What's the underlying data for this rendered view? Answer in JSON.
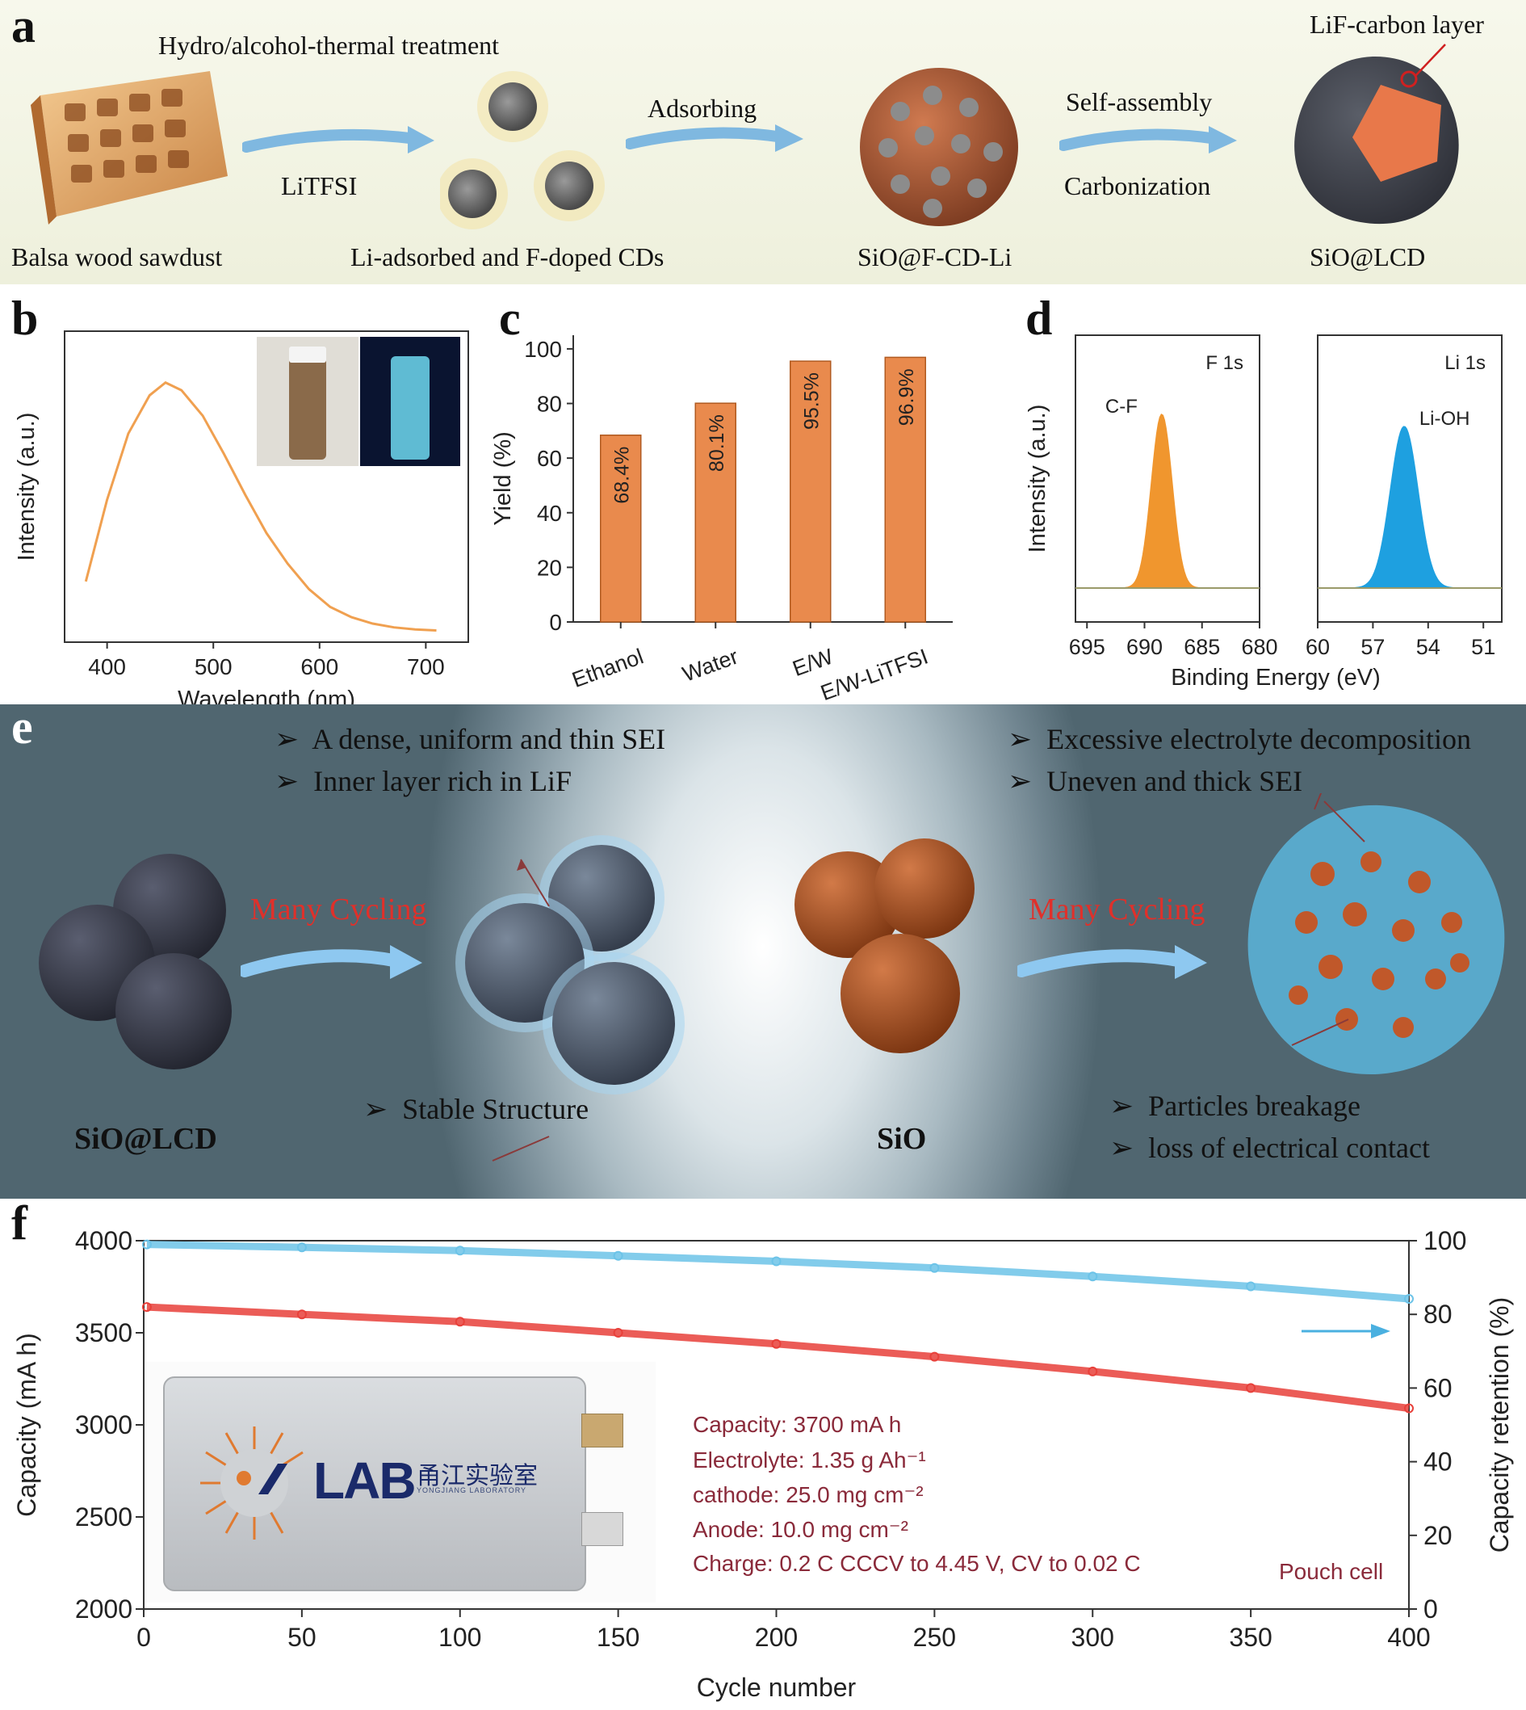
{
  "panels": {
    "a": {
      "letter": "a",
      "labels": {
        "treatment": "Hydro/alcohol-thermal  treatment",
        "litfsi": "LiTFSI",
        "adsorbing": "Adsorbing",
        "self_assembly": "Self-assembly",
        "carbonization": "Carbonization",
        "lif_layer": "LiF-carbon  layer",
        "balsa": "Balsa wood sawdust",
        "cds": "Li-adsorbed  and  F-doped CDs",
        "sio_fcd": "SiO@F-CD-Li",
        "sio_lcd": "SiO@LCD"
      }
    },
    "b": {
      "letter": "b"
    },
    "c": {
      "letter": "c"
    },
    "d": {
      "letter": "d"
    },
    "e": {
      "letter": "e",
      "left_bullets": [
        "A dense,  uniform and thin SEI",
        "Inner layer rich  in LiF"
      ],
      "right_bullets": [
        "Excessive  electrolyte  decomposition",
        "Uneven  and thick SEI"
      ],
      "cycling_left": "Many Cycling",
      "cycling_right": "Many Cycling",
      "stable": "Stable Structure",
      "breakage": "Particles  breakage",
      "contact": "loss  of electrical  contact",
      "label_left": "SiO@LCD",
      "label_right": "SiO",
      "bullet_mark": "➢"
    },
    "f": {
      "letter": "f",
      "info": [
        "Capacity: 3700 mA h",
        "Electrolyte: 1.35 g Ah⁻¹",
        "cathode: 25.0 mg cm⁻²",
        "Anode: 10.0 mg cm⁻²",
        "Charge: 0.2 C CCCV to 4.45 V, CV to 0.02 C"
      ],
      "pouch": "Pouch cell",
      "logo_text": "LAB",
      "logo_cn": "甬江实验室",
      "logo_sub": "YONGJIANG LABORATORY"
    }
  },
  "chart_data": [
    {
      "id": "b",
      "type": "line",
      "xlabel": "Wavelength (nm)",
      "ylabel": "Intensity (a.u.)",
      "xlim": [
        360,
        740
      ],
      "xticks": [
        "400",
        "500",
        "600",
        "700"
      ],
      "x": [
        380,
        400,
        420,
        440,
        455,
        470,
        490,
        510,
        530,
        550,
        570,
        590,
        610,
        630,
        650,
        670,
        690,
        710
      ],
      "y": [
        0.2,
        0.52,
        0.78,
        0.93,
        0.98,
        0.95,
        0.85,
        0.7,
        0.54,
        0.39,
        0.27,
        0.17,
        0.1,
        0.06,
        0.035,
        0.02,
        0.012,
        0.008
      ],
      "color": "#f0a050"
    },
    {
      "id": "c",
      "type": "bar",
      "ylabel": "Yield (%)",
      "categories": [
        "Ethanol",
        "Water",
        "E/W",
        "E/W-LiTFSI"
      ],
      "values": [
        68.4,
        80.1,
        95.5,
        96.9
      ],
      "value_labels": [
        "68.4%",
        "80.1%",
        "95.5%",
        "96.9%"
      ],
      "ylim": [
        0,
        105
      ],
      "yticks": [
        "0",
        "20",
        "40",
        "60",
        "80",
        "100"
      ],
      "color": "#e98a4d"
    },
    {
      "id": "d",
      "type": "line",
      "xlabel": "Binding Energy (eV)",
      "ylabel": "Intensity (a.u.)",
      "subplots": [
        {
          "title": "F 1s",
          "peak_label": "C-F",
          "xlim": [
            696,
            680
          ],
          "xticks": [
            "695",
            "690",
            "685",
            "680"
          ],
          "peak_center": 688.5,
          "peak_width": 0.9,
          "color": "#f0962e"
        },
        {
          "title": "Li 1s",
          "peak_label": "Li-OH",
          "xlim": [
            60,
            50
          ],
          "xticks": [
            "60",
            "57",
            "54",
            "51"
          ],
          "peak_center": 55.3,
          "peak_width": 0.75,
          "color": "#1ea0e0"
        }
      ]
    },
    {
      "id": "f",
      "type": "scatter",
      "xlabel": "Cycle number",
      "ylabel_left": "Capacity (mA h)",
      "ylabel_right": "Capacity retention (%)",
      "xlim": [
        0,
        400
      ],
      "ylim_left": [
        2000,
        4000
      ],
      "ylim_right": [
        0,
        100
      ],
      "xticks": [
        "0",
        "50",
        "100",
        "150",
        "200",
        "250",
        "300",
        "350",
        "400"
      ],
      "yticks_left": [
        "2000",
        "2500",
        "3000",
        "3500",
        "4000"
      ],
      "yticks_right": [
        "0",
        "20",
        "40",
        "60",
        "80",
        "100"
      ],
      "series": [
        {
          "axis": "left",
          "color": "#e8403a",
          "x": [
            1,
            50,
            100,
            150,
            200,
            250,
            300,
            350,
            400
          ],
          "y": [
            3640,
            3600,
            3560,
            3500,
            3440,
            3370,
            3290,
            3200,
            3090
          ]
        },
        {
          "axis": "right",
          "color": "#6cc3e8",
          "x": [
            1,
            50,
            100,
            150,
            200,
            250,
            300,
            350,
            400
          ],
          "y": [
            99,
            98.2,
            97.3,
            95.9,
            94.4,
            92.6,
            90.3,
            87.6,
            84.2
          ]
        }
      ]
    }
  ]
}
